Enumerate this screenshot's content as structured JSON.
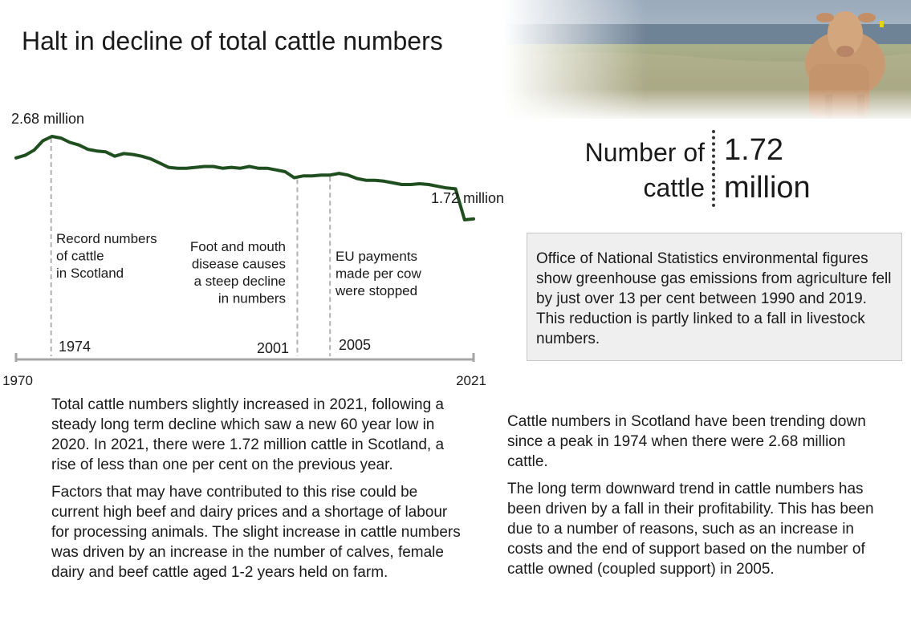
{
  "title": "Halt in decline of total cattle numbers",
  "stat": {
    "label": "Number of cattle",
    "value": "1.72 million"
  },
  "infobox": {
    "text": "Office of National Statistics environmental figures show greenhouse gas emissions from agriculture fell by just over 13 per cent between 1990 and 2019. This reduction is partly linked to a fall in livestock numbers."
  },
  "chart_data": {
    "type": "line",
    "x_start": 1970,
    "x_end": 2021,
    "x_tick_labels": [
      "1970",
      "2021"
    ],
    "peak_label": "2.68 million",
    "end_label": "1.72 million",
    "series": [
      {
        "color": "#1f4e1f",
        "x": [
          1970,
          1971,
          1972,
          1973,
          1974,
          1975,
          1976,
          1977,
          1978,
          1979,
          1980,
          1981,
          1982,
          1983,
          1984,
          1985,
          1986,
          1987,
          1988,
          1989,
          1990,
          1991,
          1992,
          1993,
          1994,
          1995,
          1996,
          1997,
          1998,
          1999,
          2000,
          2001,
          2002,
          2003,
          2004,
          2005,
          2006,
          2007,
          2008,
          2009,
          2010,
          2011,
          2012,
          2013,
          2014,
          2015,
          2016,
          2017,
          2018,
          2019,
          2020,
          2021
        ],
        "y": [
          2.43,
          2.46,
          2.52,
          2.63,
          2.68,
          2.66,
          2.61,
          2.58,
          2.53,
          2.51,
          2.5,
          2.45,
          2.48,
          2.47,
          2.45,
          2.42,
          2.37,
          2.32,
          2.31,
          2.31,
          2.32,
          2.33,
          2.33,
          2.31,
          2.32,
          2.31,
          2.33,
          2.31,
          2.31,
          2.29,
          2.27,
          2.2,
          2.22,
          2.22,
          2.23,
          2.23,
          2.25,
          2.23,
          2.19,
          2.17,
          2.17,
          2.16,
          2.14,
          2.12,
          2.12,
          2.13,
          2.12,
          2.1,
          2.08,
          2.07,
          1.71,
          1.72
        ]
      }
    ],
    "annotations": [
      {
        "year": 1974,
        "year_label": "1974",
        "text": "Record numbers of cattle in Scotland"
      },
      {
        "year": 2001,
        "year_label": "2001",
        "text": "Foot and mouth disease causes a steep decline in numbers"
      },
      {
        "year": 2005,
        "year_label": "2005",
        "text": "EU payments made per cow were stopped"
      }
    ]
  },
  "body_left": [
    "Total cattle numbers slightly increased in 2021, following a steady long term decline which saw a new 60 year low in 2020. In 2021, there were 1.72 million cattle in Scotland, a rise of less than one per cent on the previous year.",
    "Factors that may have contributed to this rise could be current high beef and dairy prices and a shortage of labour for processing animals. The slight increase in cattle numbers was driven by an increase in the number of calves, female dairy and beef cattle aged 1-2 years held on farm."
  ],
  "body_right": [
    "Cattle numbers in Scotland have been trending down since a peak in 1974 when there were 2.68 million cattle.",
    "The long term downward trend in cattle numbers has been driven by a fall in their profitability. This has been due to a number of reasons, such as an increase in costs and the end of support based on the number of cattle owned (coupled support) in 2005."
  ]
}
